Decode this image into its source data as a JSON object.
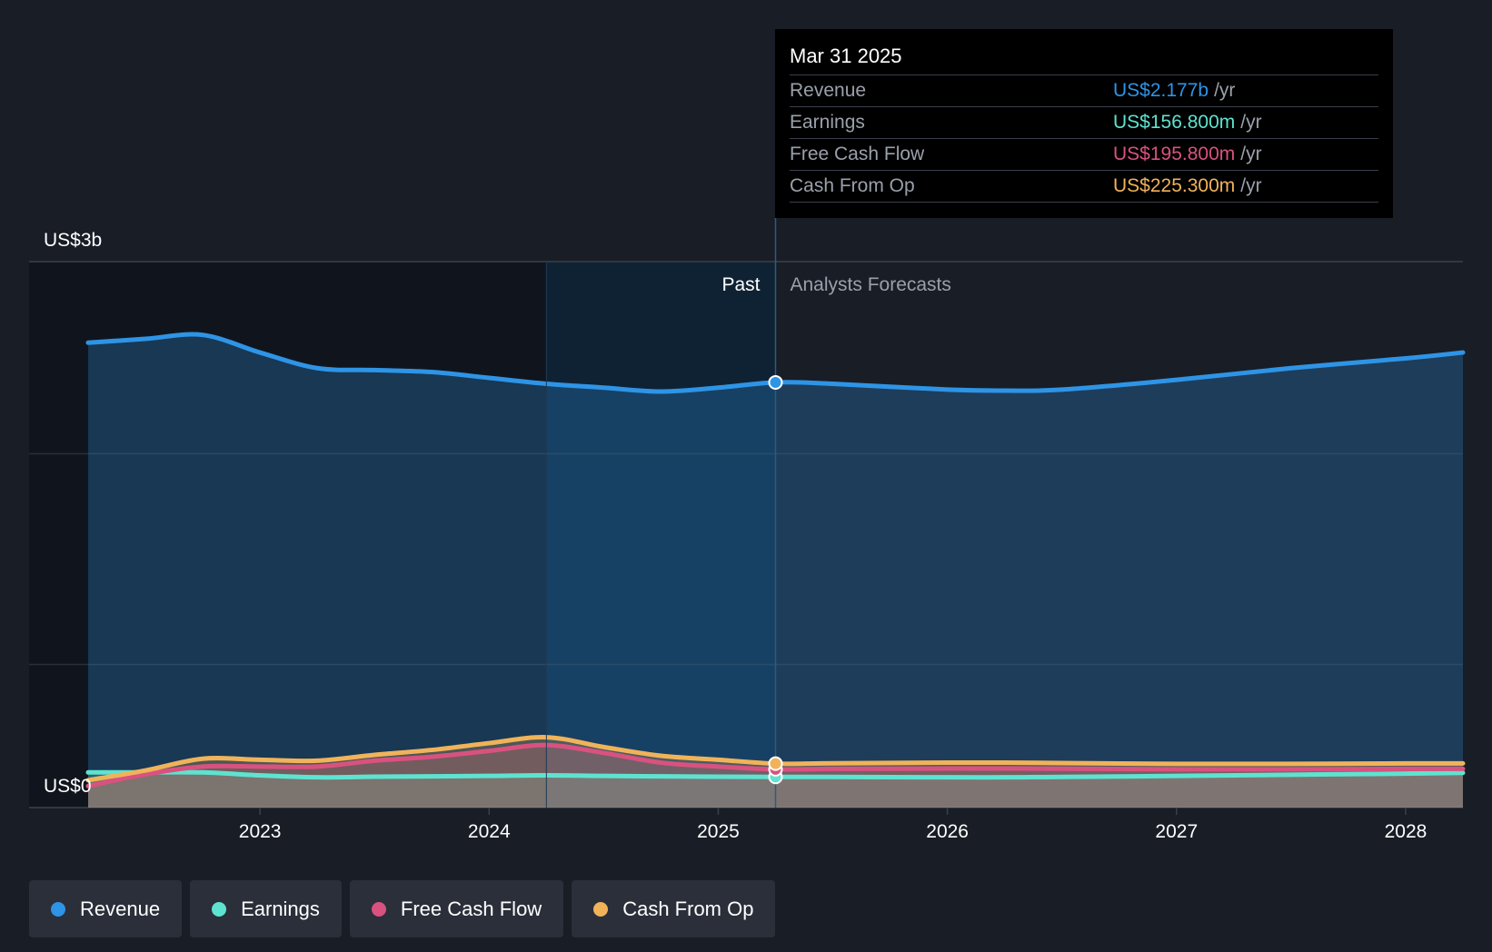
{
  "tooltip": {
    "date": "Mar 31 2025",
    "rows": [
      {
        "label": "Revenue",
        "value": "US$2.177b",
        "unit": "/yr",
        "color": "#2e94e6"
      },
      {
        "label": "Earnings",
        "value": "US$156.800m",
        "unit": "/yr",
        "color": "#5ee3d0"
      },
      {
        "label": "Free Cash Flow",
        "value": "US$195.800m",
        "unit": "/yr",
        "color": "#d9527f"
      },
      {
        "label": "Cash From Op",
        "value": "US$225.300m",
        "unit": "/yr",
        "color": "#f0b35a"
      }
    ]
  },
  "legend": [
    {
      "label": "Revenue",
      "color": "#2e94e6"
    },
    {
      "label": "Earnings",
      "color": "#5ee3d0"
    },
    {
      "label": "Free Cash Flow",
      "color": "#d9527f"
    },
    {
      "label": "Cash From Op",
      "color": "#f0b35a"
    }
  ],
  "chart_data": {
    "type": "area",
    "y_top_label": "US$3b",
    "y_bottom_label": "US$0",
    "ylim": [
      0,
      2600
    ],
    "xlim": [
      2022.25,
      2028.25
    ],
    "x_ticks": [
      "2023",
      "2024",
      "2025",
      "2026",
      "2027",
      "2028"
    ],
    "x_tick_values": [
      2023,
      2024,
      2025,
      2026,
      2027,
      2028
    ],
    "past_label": "Past",
    "forecast_label": "Analysts Forecasts",
    "divider_x": 2025.25,
    "highlight_start_x": 2024.25,
    "series": [
      {
        "name": "Revenue",
        "color": "#2e94e6",
        "x": [
          2022.25,
          2022.5,
          2022.75,
          2023.0,
          2023.25,
          2023.5,
          2023.75,
          2024.0,
          2024.25,
          2024.5,
          2024.75,
          2025.0,
          2025.25,
          2025.5,
          2026.0,
          2026.25,
          2026.5,
          2027.0,
          2027.5,
          2028.0,
          2028.25
        ],
        "values": [
          2380,
          2400,
          2420,
          2330,
          2250,
          2240,
          2230,
          2200,
          2170,
          2150,
          2130,
          2150,
          2177,
          2170,
          2140,
          2135,
          2140,
          2190,
          2250,
          2300,
          2330
        ]
      },
      {
        "name": "Earnings",
        "color": "#5ee3d0",
        "x": [
          2022.25,
          2022.5,
          2022.75,
          2023.0,
          2023.25,
          2023.5,
          2023.75,
          2024.0,
          2024.25,
          2024.5,
          2024.75,
          2025.0,
          2025.25,
          2025.5,
          2026.0,
          2026.25,
          2026.5,
          2027.0,
          2027.5,
          2028.0,
          2028.25
        ],
        "values": [
          180,
          180,
          180,
          165,
          155,
          158,
          160,
          162,
          165,
          162,
          160,
          158,
          157,
          157,
          155,
          155,
          157,
          162,
          168,
          174,
          178
        ]
      },
      {
        "name": "Free Cash Flow",
        "color": "#d9527f",
        "x": [
          2022.25,
          2022.5,
          2022.75,
          2023.0,
          2023.25,
          2023.5,
          2023.75,
          2024.0,
          2024.25,
          2024.5,
          2024.75,
          2025.0,
          2025.25,
          2025.5,
          2026.0,
          2026.25,
          2026.5,
          2027.0,
          2027.5,
          2028.0,
          2028.25
        ],
        "values": [
          110,
          170,
          210,
          210,
          210,
          240,
          260,
          290,
          320,
          280,
          230,
          210,
          196,
          198,
          200,
          200,
          199,
          196,
          196,
          198,
          198
        ]
      },
      {
        "name": "Cash From Op",
        "color": "#f0b35a",
        "x": [
          2022.25,
          2022.5,
          2022.75,
          2023.0,
          2023.25,
          2023.5,
          2023.75,
          2024.0,
          2024.25,
          2024.5,
          2024.75,
          2025.0,
          2025.25,
          2025.5,
          2026.0,
          2026.25,
          2026.5,
          2027.0,
          2027.5,
          2028.0,
          2028.25
        ],
        "values": [
          140,
          190,
          250,
          245,
          240,
          270,
          295,
          330,
          360,
          310,
          265,
          245,
          225,
          227,
          230,
          230,
          228,
          224,
          224,
          226,
          226
        ]
      }
    ]
  }
}
